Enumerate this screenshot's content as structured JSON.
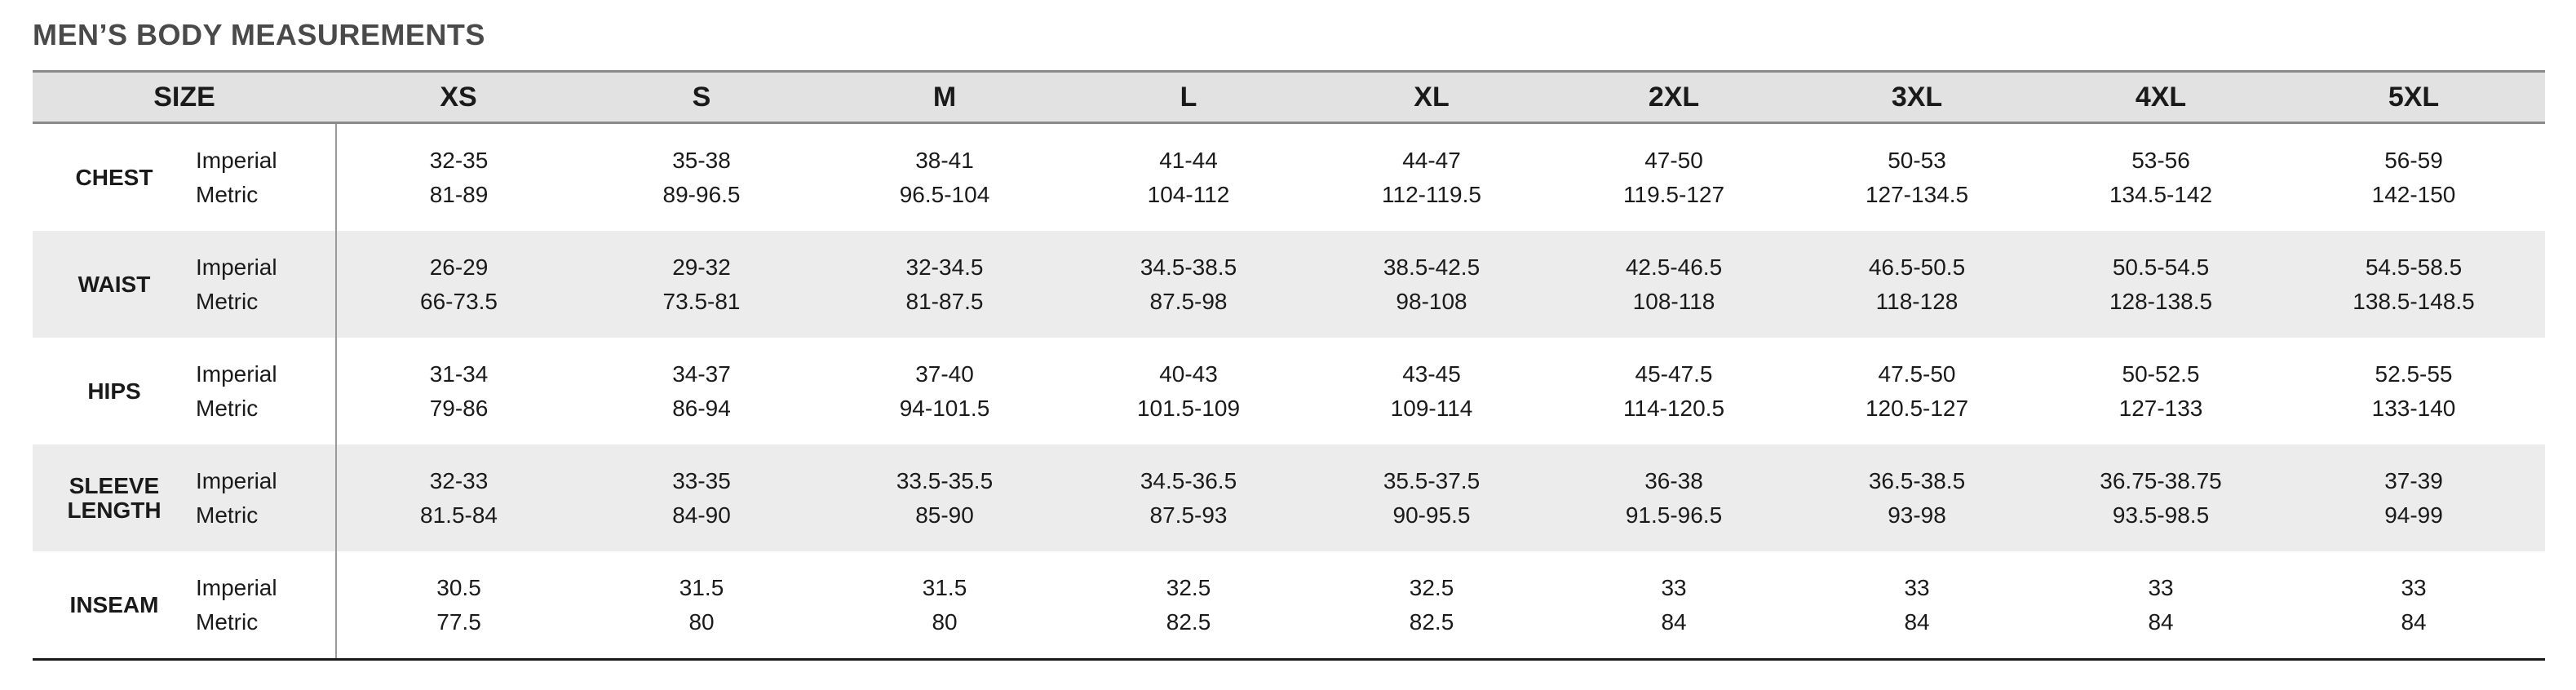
{
  "title": "MEN’S BODY MEASUREMENTS",
  "header": {
    "size_label": "SIZE",
    "sizes": [
      "XS",
      "S",
      "M",
      "L",
      "XL",
      "2XL",
      "3XL",
      "4XL",
      "5XL"
    ]
  },
  "units": {
    "imperial": "Imperial",
    "metric": "Metric"
  },
  "rows": [
    {
      "category": "CHEST",
      "imperial": [
        "32-35",
        "35-38",
        "38-41",
        "41-44",
        "44-47",
        "47-50",
        "50-53",
        "53-56",
        "56-59"
      ],
      "metric": [
        "81-89",
        "89-96.5",
        "96.5-104",
        "104-112",
        "112-119.5",
        "119.5-127",
        "127-134.5",
        "134.5-142",
        "142-150"
      ]
    },
    {
      "category": "WAIST",
      "imperial": [
        "26-29",
        "29-32",
        "32-34.5",
        "34.5-38.5",
        "38.5-42.5",
        "42.5-46.5",
        "46.5-50.5",
        "50.5-54.5",
        "54.5-58.5"
      ],
      "metric": [
        "66-73.5",
        "73.5-81",
        "81-87.5",
        "87.5-98",
        "98-108",
        "108-118",
        "118-128",
        "128-138.5",
        "138.5-148.5"
      ]
    },
    {
      "category": "HIPS",
      "imperial": [
        "31-34",
        "34-37",
        "37-40",
        "40-43",
        "43-45",
        "45-47.5",
        "47.5-50",
        "50-52.5",
        "52.5-55"
      ],
      "metric": [
        "79-86",
        "86-94",
        "94-101.5",
        "101.5-109",
        "109-114",
        "114-120.5",
        "120.5-127",
        "127-133",
        "133-140"
      ]
    },
    {
      "category": "SLEEVE LENGTH",
      "imperial": [
        "32-33",
        "33-35",
        "33.5-35.5",
        "34.5-36.5",
        "35.5-37.5",
        "36-38",
        "36.5-38.5",
        "36.75-38.75",
        "37-39"
      ],
      "metric": [
        "81.5-84",
        "84-90",
        "85-90",
        "87.5-93",
        "90-95.5",
        "91.5-96.5",
        "93-98",
        "93.5-98.5",
        "94-99"
      ]
    },
    {
      "category": "INSEAM",
      "imperial": [
        "30.5",
        "31.5",
        "31.5",
        "32.5",
        "32.5",
        "33",
        "33",
        "33",
        "33"
      ],
      "metric": [
        "77.5",
        "80",
        "80",
        "82.5",
        "82.5",
        "84",
        "84",
        "84",
        "84"
      ]
    }
  ],
  "colors": {
    "header_bg": "#e2e2e2",
    "shaded_row_bg": "#ececec",
    "title_color": "#4a4a4a"
  }
}
